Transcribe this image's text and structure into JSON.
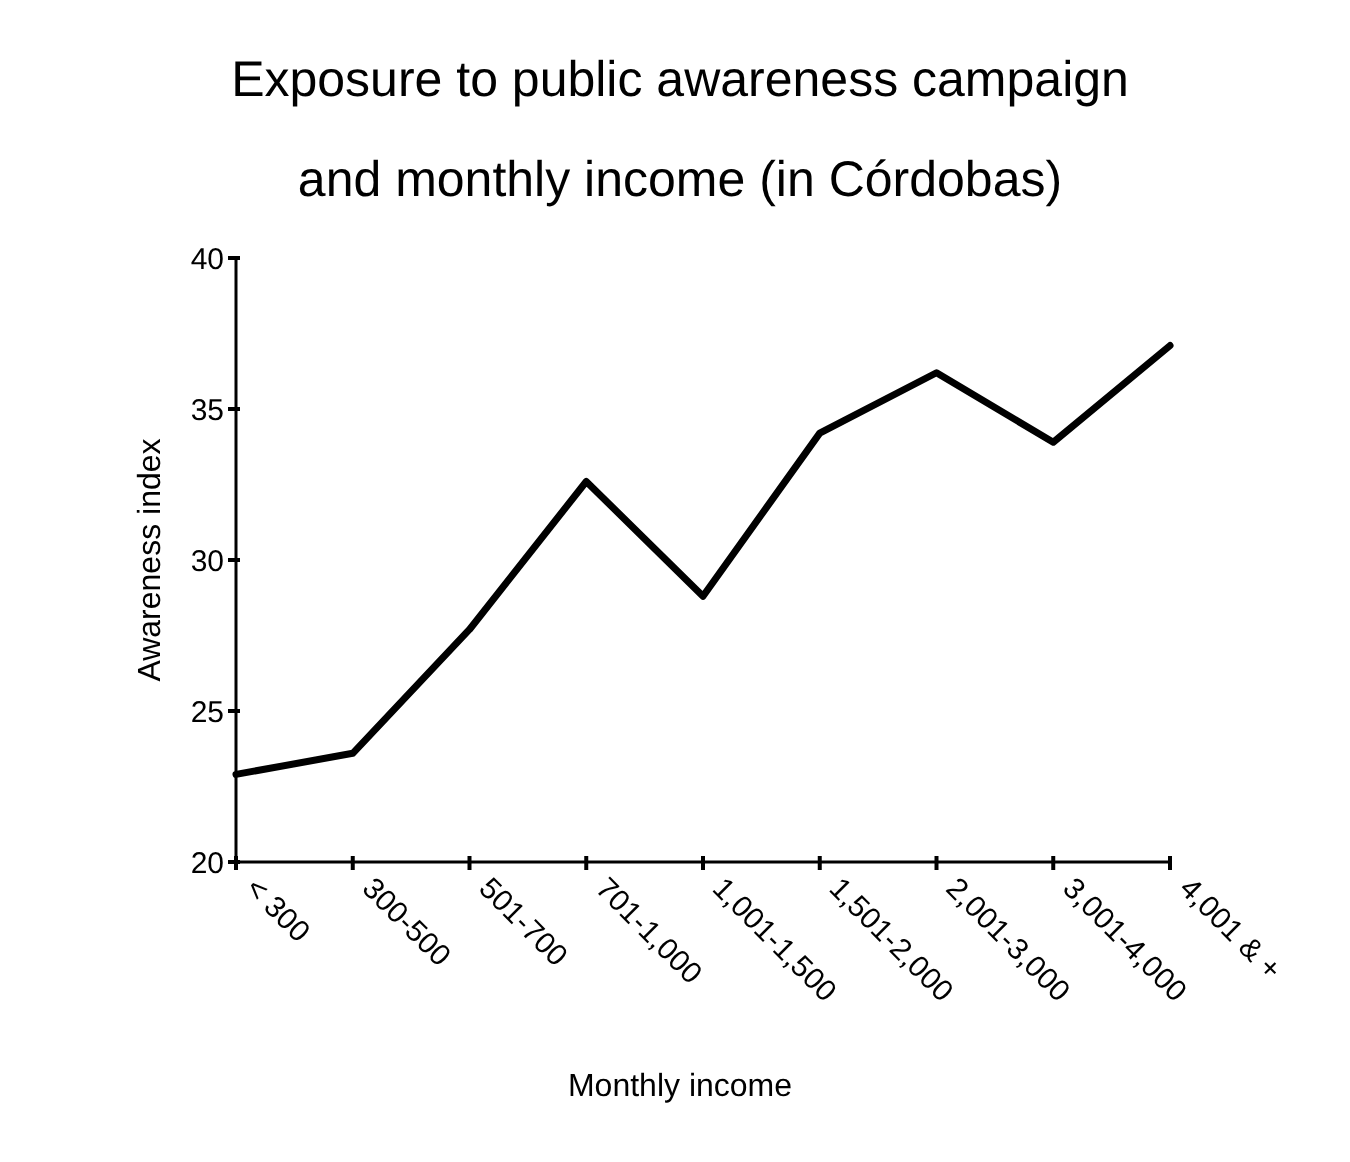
{
  "chart_data": {
    "type": "line",
    "title": "Exposure to public awareness campaign and monthly income (in Córdobas)",
    "xlabel": "Monthly income",
    "ylabel": "Awareness index",
    "categories": [
      "< 300",
      "300-500",
      "501-700",
      "701-1,000",
      "1,001-1,500",
      "1,501-2,000",
      "2,001-3,000",
      "3,001-4,000",
      "4,001 & +"
    ],
    "series": [
      {
        "color": "#000000",
        "values": [
          22.9,
          23.6,
          27.7,
          32.6,
          28.8,
          34.2,
          36.2,
          33.9,
          37.1
        ]
      }
    ],
    "ylim": [
      20,
      40
    ],
    "yticks": [
      20,
      25,
      30,
      35,
      40
    ],
    "grid": false,
    "marker": "none",
    "line_style": "solid"
  }
}
